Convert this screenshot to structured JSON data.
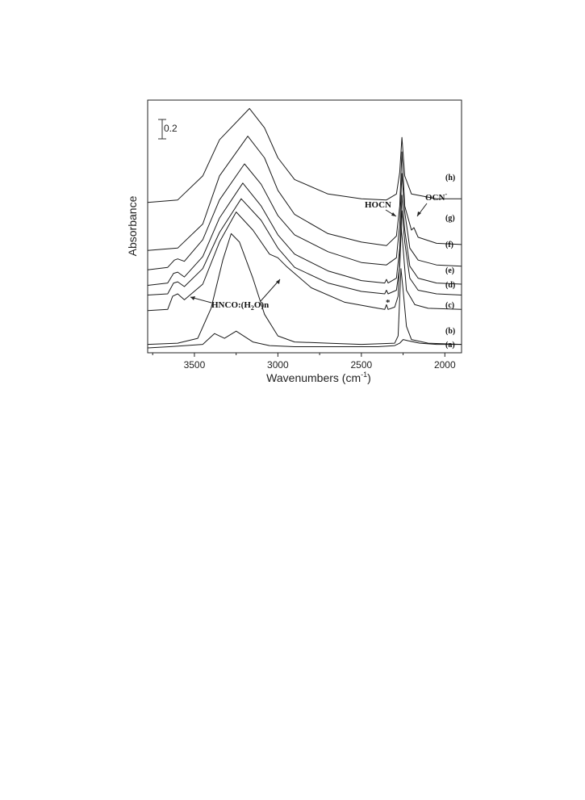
{
  "chart_data": {
    "type": "line",
    "xlabel": "Wavenumbers (cm",
    "xlabel_sup": "-1",
    "xlabel_close": ")",
    "ylabel": "Absorbance",
    "xlim": [
      3780,
      1900
    ],
    "x_reversed": true,
    "x_ticks": [
      "3500",
      "3000",
      "2500",
      "2000"
    ],
    "x_tick_values": [
      3500,
      3000,
      2500,
      2000
    ],
    "scale_bar": {
      "label": "0.2",
      "value": 0.2
    },
    "y_ticks_shown": false,
    "legend": "none",
    "series": [
      {
        "name": "(a)",
        "points": [
          [
            3780,
            0.02
          ],
          [
            3650,
            0.03
          ],
          [
            3450,
            0.05
          ],
          [
            3380,
            0.14
          ],
          [
            3320,
            0.1
          ],
          [
            3250,
            0.16
          ],
          [
            3150,
            0.07
          ],
          [
            3050,
            0.04
          ],
          [
            2900,
            0.03
          ],
          [
            2600,
            0.03
          ],
          [
            2400,
            0.03
          ],
          [
            2300,
            0.04
          ],
          [
            2270,
            0.06
          ],
          [
            2250,
            0.09
          ],
          [
            2220,
            0.08
          ],
          [
            2150,
            0.06
          ],
          [
            2050,
            0.05
          ],
          [
            1900,
            0.05
          ]
        ]
      },
      {
        "name": "(b)",
        "points": [
          [
            3780,
            0.05
          ],
          [
            3600,
            0.06
          ],
          [
            3480,
            0.1
          ],
          [
            3400,
            0.35
          ],
          [
            3330,
            0.75
          ],
          [
            3280,
            0.97
          ],
          [
            3230,
            0.9
          ],
          [
            3150,
            0.6
          ],
          [
            3080,
            0.3
          ],
          [
            3000,
            0.12
          ],
          [
            2900,
            0.07
          ],
          [
            2700,
            0.06
          ],
          [
            2500,
            0.05
          ],
          [
            2300,
            0.06
          ],
          [
            2280,
            0.12
          ],
          [
            2263,
            0.68
          ],
          [
            2250,
            0.5
          ],
          [
            2230,
            0.2
          ],
          [
            2200,
            0.09
          ],
          [
            2100,
            0.06
          ],
          [
            1900,
            0.05
          ]
        ]
      },
      {
        "name": "(c)",
        "points": [
          [
            3780,
            0.33
          ],
          [
            3660,
            0.34
          ],
          [
            3630,
            0.45
          ],
          [
            3600,
            0.47
          ],
          [
            3560,
            0.42
          ],
          [
            3450,
            0.55
          ],
          [
            3350,
            0.9
          ],
          [
            3250,
            1.15
          ],
          [
            3150,
            1.0
          ],
          [
            3050,
            0.8
          ],
          [
            3000,
            0.77
          ],
          [
            2950,
            0.7
          ],
          [
            2800,
            0.52
          ],
          [
            2600,
            0.4
          ],
          [
            2400,
            0.35
          ],
          [
            2360,
            0.34
          ],
          [
            2350,
            0.38
          ],
          [
            2340,
            0.34
          ],
          [
            2300,
            0.36
          ],
          [
            2280,
            0.45
          ],
          [
            2262,
            1.03
          ],
          [
            2250,
            0.85
          ],
          [
            2230,
            0.5
          ],
          [
            2180,
            0.38
          ],
          [
            2100,
            0.35
          ],
          [
            1900,
            0.34
          ]
        ]
      },
      {
        "name": "(d)",
        "points": [
          [
            3780,
            0.46
          ],
          [
            3660,
            0.47
          ],
          [
            3625,
            0.56
          ],
          [
            3600,
            0.57
          ],
          [
            3560,
            0.53
          ],
          [
            3450,
            0.68
          ],
          [
            3350,
            0.98
          ],
          [
            3220,
            1.26
          ],
          [
            3100,
            1.08
          ],
          [
            3000,
            0.85
          ],
          [
            2900,
            0.69
          ],
          [
            2700,
            0.56
          ],
          [
            2500,
            0.49
          ],
          [
            2360,
            0.47
          ],
          [
            2350,
            0.5
          ],
          [
            2340,
            0.47
          ],
          [
            2290,
            0.5
          ],
          [
            2270,
            0.7
          ],
          [
            2257,
            1.16
          ],
          [
            2240,
            0.9
          ],
          [
            2210,
            0.6
          ],
          [
            2160,
            0.5
          ],
          [
            2050,
            0.47
          ],
          [
            1900,
            0.46
          ]
        ]
      },
      {
        "name": "(e)",
        "points": [
          [
            3780,
            0.54
          ],
          [
            3660,
            0.56
          ],
          [
            3625,
            0.64
          ],
          [
            3600,
            0.65
          ],
          [
            3560,
            0.61
          ],
          [
            3450,
            0.78
          ],
          [
            3350,
            1.1
          ],
          [
            3210,
            1.39
          ],
          [
            3100,
            1.2
          ],
          [
            3000,
            0.96
          ],
          [
            2900,
            0.8
          ],
          [
            2700,
            0.66
          ],
          [
            2500,
            0.58
          ],
          [
            2360,
            0.56
          ],
          [
            2350,
            0.59
          ],
          [
            2340,
            0.56
          ],
          [
            2290,
            0.6
          ],
          [
            2270,
            0.85
          ],
          [
            2257,
            1.29
          ],
          [
            2240,
            1.0
          ],
          [
            2210,
            0.7
          ],
          [
            2160,
            0.6
          ],
          [
            2050,
            0.56
          ],
          [
            1900,
            0.55
          ]
        ]
      },
      {
        "name": "(f)",
        "points": [
          [
            3780,
            0.67
          ],
          [
            3660,
            0.69
          ],
          [
            3620,
            0.75
          ],
          [
            3600,
            0.76
          ],
          [
            3560,
            0.74
          ],
          [
            3450,
            0.92
          ],
          [
            3350,
            1.25
          ],
          [
            3200,
            1.55
          ],
          [
            3100,
            1.38
          ],
          [
            3000,
            1.12
          ],
          [
            2900,
            0.96
          ],
          [
            2700,
            0.82
          ],
          [
            2500,
            0.73
          ],
          [
            2350,
            0.71
          ],
          [
            2290,
            0.77
          ],
          [
            2270,
            1.05
          ],
          [
            2257,
            1.47
          ],
          [
            2240,
            1.15
          ],
          [
            2210,
            0.85
          ],
          [
            2160,
            0.75
          ],
          [
            2050,
            0.71
          ],
          [
            1900,
            0.7
          ]
        ]
      },
      {
        "name": "(g)",
        "points": [
          [
            3780,
            0.83
          ],
          [
            3600,
            0.85
          ],
          [
            3450,
            1.05
          ],
          [
            3350,
            1.45
          ],
          [
            3180,
            1.78
          ],
          [
            3080,
            1.6
          ],
          [
            3000,
            1.33
          ],
          [
            2900,
            1.13
          ],
          [
            2700,
            0.97
          ],
          [
            2500,
            0.9
          ],
          [
            2350,
            0.87
          ],
          [
            2290,
            0.95
          ],
          [
            2270,
            1.2
          ],
          [
            2257,
            1.65
          ],
          [
            2240,
            1.2
          ],
          [
            2200,
            1.0
          ],
          [
            2185,
            1.02
          ],
          [
            2160,
            0.94
          ],
          [
            2050,
            0.89
          ],
          [
            1900,
            0.88
          ]
        ]
      },
      {
        "name": "(h)",
        "points": [
          [
            3780,
            1.23
          ],
          [
            3600,
            1.25
          ],
          [
            3450,
            1.45
          ],
          [
            3350,
            1.75
          ],
          [
            3170,
            2.01
          ],
          [
            3080,
            1.85
          ],
          [
            3000,
            1.6
          ],
          [
            2900,
            1.42
          ],
          [
            2700,
            1.3
          ],
          [
            2500,
            1.26
          ],
          [
            2350,
            1.25
          ],
          [
            2290,
            1.3
          ],
          [
            2270,
            1.48
          ],
          [
            2257,
            1.77
          ],
          [
            2240,
            1.45
          ],
          [
            2200,
            1.3
          ],
          [
            2050,
            1.26
          ],
          [
            1900,
            1.26
          ]
        ]
      }
    ],
    "annotations": {
      "hnco": "HNCO:(H",
      "hnco_sub": "2",
      "hnco_end": "O)n",
      "hocn": "HOCN",
      "ocn": "OCN",
      "ocn_sup": "-",
      "star": "*"
    },
    "grid": false
  }
}
